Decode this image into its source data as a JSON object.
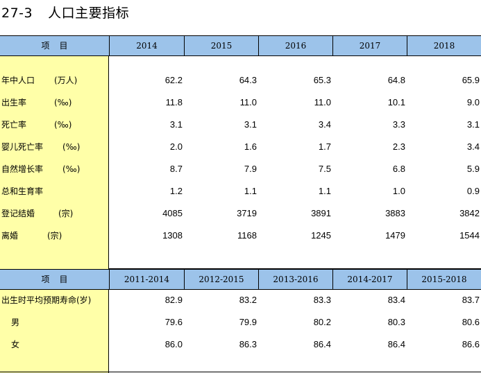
{
  "title": {
    "number": "27-3",
    "text": "人口主要指标"
  },
  "table1": {
    "header_label": "项目",
    "years": [
      "2014",
      "2015",
      "2016",
      "2017",
      "2018"
    ],
    "rows": [
      {
        "label": "年中人口",
        "unit": "(万人)",
        "values": [
          "62.2",
          "64.3",
          "65.3",
          "64.8",
          "65.9"
        ]
      },
      {
        "label": "出生率",
        "unit": "(‰)",
        "values": [
          "11.8",
          "11.0",
          "11.0",
          "10.1",
          "9.0"
        ]
      },
      {
        "label": "死亡率",
        "unit": "(‰)",
        "values": [
          "3.1",
          "3.1",
          "3.4",
          "3.3",
          "3.1"
        ]
      },
      {
        "label": "婴儿死亡率",
        "unit": "(‰)",
        "values": [
          "2.0",
          "1.6",
          "1.7",
          "2.3",
          "3.4"
        ]
      },
      {
        "label": "自然增长率",
        "unit": "(‰)",
        "values": [
          "8.7",
          "7.9",
          "7.5",
          "6.8",
          "5.9"
        ]
      },
      {
        "label": "总和生育率",
        "unit": "",
        "values": [
          "1.2",
          "1.1",
          "1.1",
          "1.0",
          "0.9"
        ]
      },
      {
        "label": "登记结婚",
        "unit": "(宗)",
        "values": [
          "4085",
          "3719",
          "3891",
          "3883",
          "3842"
        ]
      },
      {
        "label": "离婚",
        "unit": "(宗)",
        "values": [
          "1308",
          "1168",
          "1245",
          "1479",
          "1544"
        ]
      }
    ]
  },
  "table2": {
    "header_label": "项目",
    "periods": [
      "2011-2014",
      "2012-2015",
      "2013-2016",
      "2014-2017",
      "2015-2018"
    ],
    "rows": [
      {
        "label": "出生时平均预期寿命(岁)",
        "values": [
          "82.9",
          "83.2",
          "83.3",
          "83.4",
          "83.7"
        ]
      },
      {
        "label": "男",
        "values": [
          "79.6",
          "79.9",
          "80.2",
          "80.3",
          "80.6"
        ]
      },
      {
        "label": "女",
        "values": [
          "86.0",
          "86.3",
          "86.4",
          "86.4",
          "86.6"
        ]
      }
    ]
  },
  "colors": {
    "header_bg": "#9cc3ea",
    "label_col_bg": "#ffffa8"
  }
}
